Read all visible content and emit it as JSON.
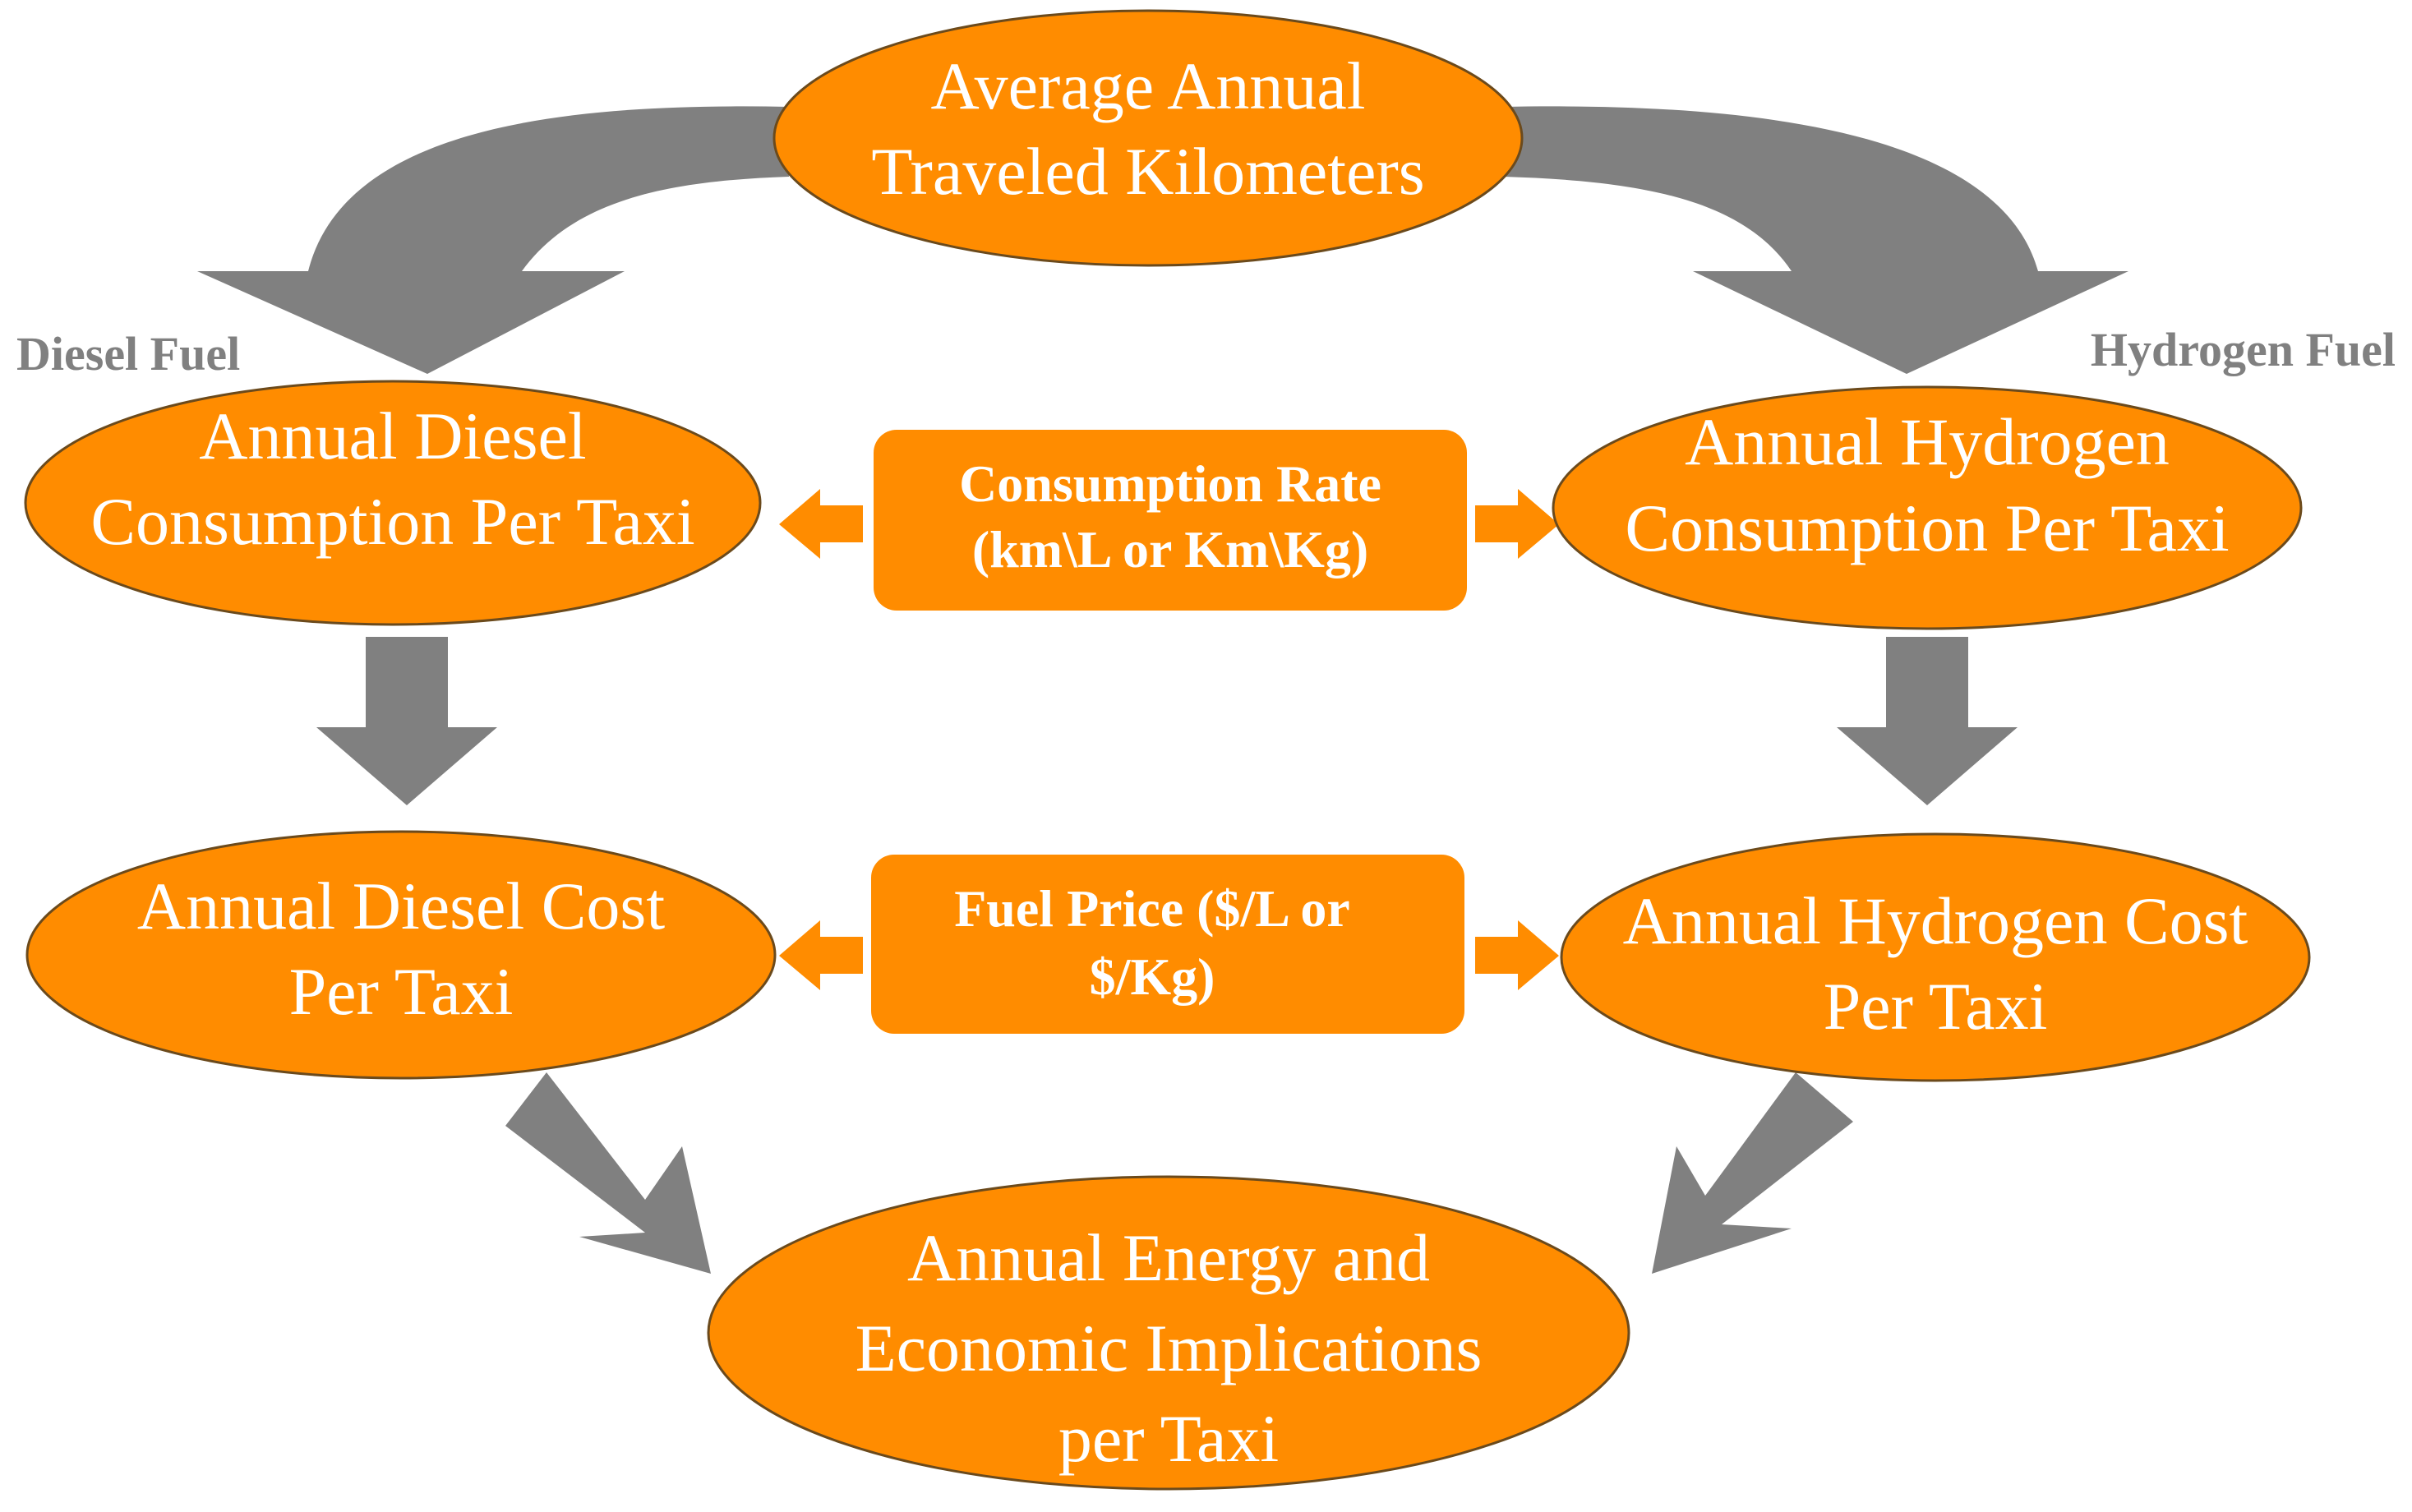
{
  "colors": {
    "node_fill": "#FF8C00",
    "box_fill": "#FF8C00",
    "arrow_gray": "#808080",
    "small_arrow": "#FF8C00",
    "label_gray": "#808080",
    "text": "#FFFFFF"
  },
  "labels": {
    "diesel_fuel": "Diesel Fuel",
    "hydrogen_fuel": "Hydrogen Fuel"
  },
  "nodes": {
    "top": {
      "lines": [
        "Average Annual",
        "Traveled Kilometers"
      ]
    },
    "diesel_consumption": {
      "lines": [
        "Annual Diesel",
        "Consumption Per Taxi"
      ]
    },
    "hydrogen_consumption": {
      "lines": [
        "Annual Hydrogen",
        "Consumption Per Taxi"
      ]
    },
    "diesel_cost": {
      "lines": [
        "Annual Diesel Cost",
        "Per Taxi"
      ]
    },
    "hydrogen_cost": {
      "lines": [
        "Annual Hydrogen Cost",
        "Per Taxi"
      ]
    },
    "bottom": {
      "lines": [
        "Annual Energy and",
        "Economic Implications",
        "per Taxi"
      ]
    }
  },
  "boxes": {
    "consumption_rate": {
      "lines": [
        "Consumption Rate",
        "(km\\L or Km\\Kg)"
      ]
    },
    "fuel_price": {
      "lines": [
        "Fuel Price ($/L or",
        "$/Kg)"
      ]
    }
  }
}
